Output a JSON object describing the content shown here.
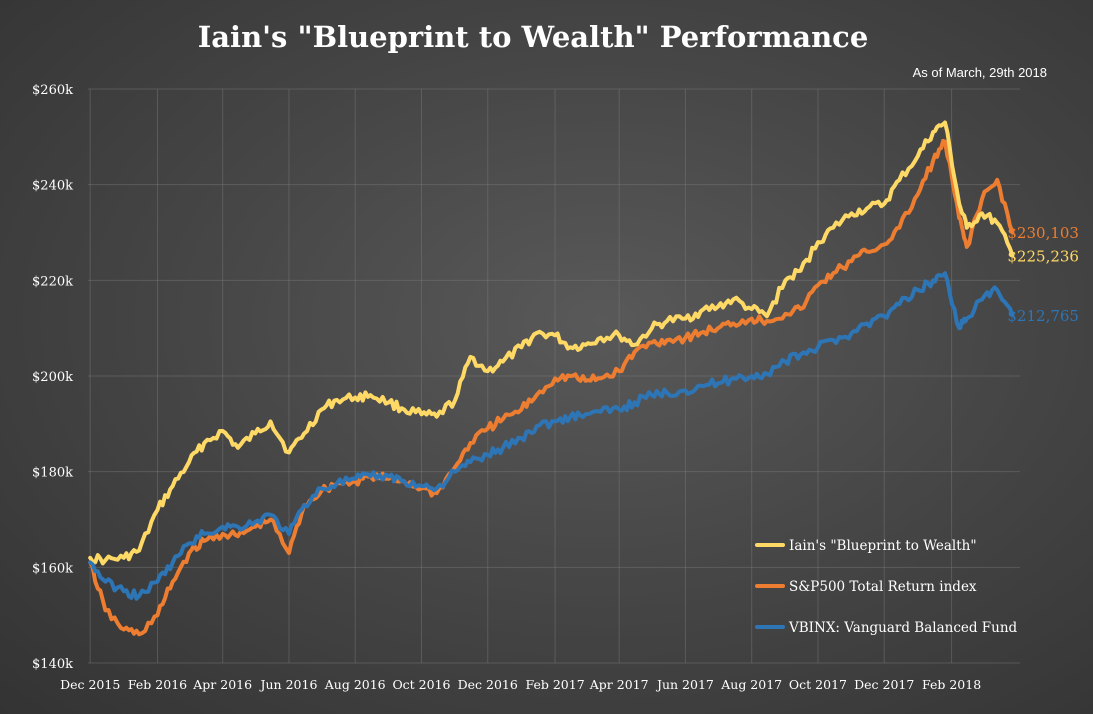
{
  "chart_data": {
    "type": "line",
    "title": "Iain's \"Blueprint to Wealth\" Performance",
    "subtitle": "As of March, 29th 2018",
    "xlabel": "",
    "ylabel": "",
    "ylim": [
      140000,
      260000
    ],
    "grid": true,
    "legend_position": "bottom-right",
    "y_ticks": [
      {
        "value": 140000,
        "label": "$140k"
      },
      {
        "value": 160000,
        "label": "$160k"
      },
      {
        "value": 180000,
        "label": "$180k"
      },
      {
        "value": 200000,
        "label": "$200k"
      },
      {
        "value": 220000,
        "label": "$220k"
      },
      {
        "value": 240000,
        "label": "$240k"
      },
      {
        "value": 260000,
        "label": "$260k"
      }
    ],
    "x_ticks": [
      {
        "value": "2015-12",
        "label": "Dec 2015"
      },
      {
        "value": "2016-02",
        "label": "Feb 2016"
      },
      {
        "value": "2016-04",
        "label": "Apr 2016"
      },
      {
        "value": "2016-06",
        "label": "Jun 2016"
      },
      {
        "value": "2016-08",
        "label": "Aug 2016"
      },
      {
        "value": "2016-10",
        "label": "Oct 2016"
      },
      {
        "value": "2016-12",
        "label": "Dec 2016"
      },
      {
        "value": "2017-02",
        "label": "Feb 2017"
      },
      {
        "value": "2017-04",
        "label": "Apr 2017"
      },
      {
        "value": "2017-06",
        "label": "Jun 2017"
      },
      {
        "value": "2017-08",
        "label": "Aug 2017"
      },
      {
        "value": "2017-10",
        "label": "Oct 2017"
      },
      {
        "value": "2017-12",
        "label": "Dec 2017"
      },
      {
        "value": "2018-02",
        "label": "Feb 2018"
      }
    ],
    "x": [
      "2015-12-01",
      "2015-12-15",
      "2016-01-01",
      "2016-01-15",
      "2016-02-01",
      "2016-02-15",
      "2016-03-01",
      "2016-03-15",
      "2016-04-01",
      "2016-04-15",
      "2016-05-01",
      "2016-05-15",
      "2016-06-01",
      "2016-06-15",
      "2016-07-01",
      "2016-07-15",
      "2016-08-01",
      "2016-08-15",
      "2016-09-01",
      "2016-09-15",
      "2016-10-01",
      "2016-10-15",
      "2016-11-01",
      "2016-11-15",
      "2016-12-01",
      "2016-12-15",
      "2017-01-01",
      "2017-01-15",
      "2017-02-01",
      "2017-02-15",
      "2017-03-01",
      "2017-03-15",
      "2017-04-01",
      "2017-04-15",
      "2017-05-01",
      "2017-05-15",
      "2017-06-01",
      "2017-06-15",
      "2017-07-01",
      "2017-07-15",
      "2017-08-01",
      "2017-08-15",
      "2017-09-01",
      "2017-09-15",
      "2017-10-01",
      "2017-10-15",
      "2017-11-01",
      "2017-11-15",
      "2017-12-01",
      "2017-12-15",
      "2018-01-01",
      "2018-01-15",
      "2018-01-26",
      "2018-02-08",
      "2018-02-15",
      "2018-03-01",
      "2018-03-15",
      "2018-03-29"
    ],
    "series": [
      {
        "name": "Iain's \"Blueprint to Wealth\"",
        "color": "#ffd966",
        "end_label": "$225,236",
        "values": [
          162000,
          161500,
          162000,
          163500,
          172000,
          177000,
          182000,
          186000,
          188500,
          185000,
          188000,
          190500,
          184000,
          188000,
          193000,
          195000,
          195500,
          196000,
          194500,
          193000,
          192000,
          191500,
          195000,
          204000,
          201000,
          203000,
          206000,
          209000,
          208500,
          206000,
          206500,
          208000,
          208500,
          206500,
          210000,
          211500,
          212000,
          213500,
          214500,
          216000,
          214000,
          212500,
          220000,
          222000,
          228000,
          231000,
          234000,
          235000,
          236000,
          241000,
          246000,
          251000,
          253000,
          236000,
          231000,
          234000,
          232000,
          225236
        ]
      },
      {
        "name": "S&P500 Total Return index",
        "color": "#ed7d31",
        "end_label": "$230,103",
        "values": [
          161000,
          151000,
          147000,
          146000,
          150000,
          157000,
          163000,
          165500,
          167000,
          166500,
          168500,
          170000,
          163000,
          173000,
          176000,
          177500,
          178000,
          179000,
          178500,
          178000,
          176500,
          175500,
          181000,
          186000,
          189000,
          191000,
          193000,
          196000,
          199500,
          200000,
          199000,
          199500,
          201000,
          205000,
          207000,
          207500,
          208000,
          209000,
          210000,
          211000,
          212000,
          211500,
          213000,
          214000,
          219000,
          221500,
          224000,
          226000,
          227500,
          231000,
          238000,
          245000,
          249000,
          233000,
          227000,
          237000,
          241000,
          230103
        ]
      },
      {
        "name": "VBINX: Vanguard Balanced Fund",
        "color": "#2e75b6",
        "end_label": "$212,765",
        "values": [
          161000,
          157000,
          155000,
          154000,
          157000,
          161000,
          165000,
          167000,
          168500,
          168500,
          169500,
          171000,
          167000,
          173000,
          176500,
          177500,
          178500,
          179000,
          179000,
          178000,
          177000,
          176500,
          180000,
          182000,
          183500,
          185000,
          187000,
          189500,
          190500,
          191500,
          192000,
          192500,
          193000,
          194500,
          196000,
          196500,
          197000,
          198000,
          198500,
          199500,
          200000,
          200500,
          203000,
          204500,
          206000,
          207500,
          209000,
          211000,
          212500,
          215000,
          218000,
          220000,
          221500,
          210000,
          212000,
          216000,
          218000,
          212765
        ]
      }
    ]
  },
  "colors": {
    "background": "#474747",
    "title": "#ffffff"
  }
}
